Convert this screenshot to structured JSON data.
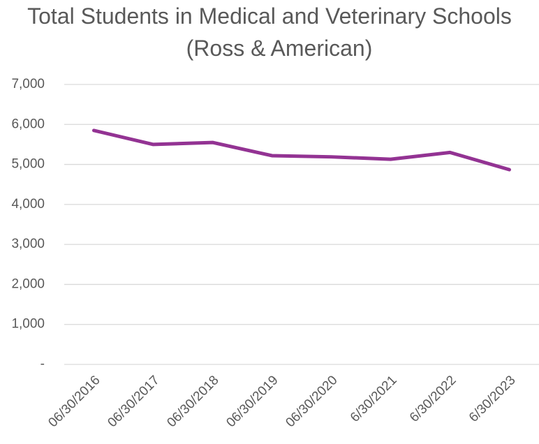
{
  "chart_data": {
    "type": "line",
    "title": [
      "Total Students in Medical and Veterinary Schools",
      "(Ross & American)"
    ],
    "categories": [
      "06/30/2016",
      "06/30/2017",
      "06/30/2018",
      "06/30/2019",
      "06/30/2020",
      "6/30/2021",
      "6/30/2022",
      "6/30/2023"
    ],
    "values": [
      5850,
      5500,
      5550,
      5220,
      5190,
      5130,
      5300,
      4870
    ],
    "color": "#933393",
    "ylim": [
      0,
      7000
    ],
    "yticks": [
      {
        "value": 0,
        "label": "-"
      },
      {
        "value": 1000,
        "label": "1,000"
      },
      {
        "value": 2000,
        "label": "2,000"
      },
      {
        "value": 3000,
        "label": "3,000"
      },
      {
        "value": 4000,
        "label": "4,000"
      },
      {
        "value": 5000,
        "label": "5,000"
      },
      {
        "value": 6000,
        "label": "6,000"
      },
      {
        "value": 7000,
        "label": "7,000"
      }
    ],
    "grid": true
  }
}
